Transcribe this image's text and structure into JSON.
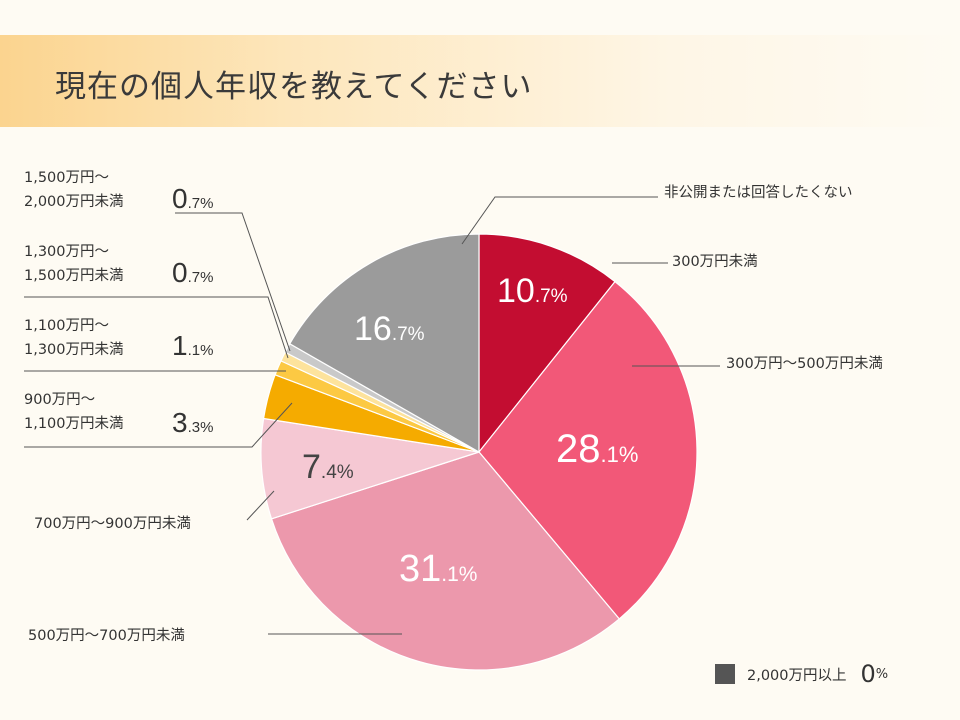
{
  "title": "現在の個人年収を教えてください",
  "colors": {
    "title_gradient_start": "#fbd48f",
    "background": "#fefbf3"
  },
  "chart_data": {
    "type": "pie",
    "title": "現在の個人年収を教えてください",
    "unit": "%",
    "slices": [
      {
        "label": "300万円未満",
        "value": 10.7,
        "int": "10",
        "dec": ".7%",
        "color": "#c30d31",
        "label_color": "#ffffff"
      },
      {
        "label": "300万円〜500万円未満",
        "value": 28.1,
        "int": "28",
        "dec": ".1%",
        "color": "#f25878",
        "label_color": "#ffffff"
      },
      {
        "label": "500万円〜700万円未満",
        "value": 31.1,
        "int": "31",
        "dec": ".1%",
        "color": "#ec98ac",
        "label_color": "#ffffff"
      },
      {
        "label": "700万円〜900万円未満",
        "value": 7.4,
        "int": "7",
        "dec": ".4%",
        "color": "#f5c8d3",
        "label_color": "#444444"
      },
      {
        "label_lines": [
          "900万円〜",
          "1,100万円未満"
        ],
        "value": 3.3,
        "int": "3",
        "dec": ".3%",
        "color": "#f5ab00"
      },
      {
        "label_lines": [
          "1,100万円〜",
          "1,300万円未満"
        ],
        "value": 1.1,
        "int": "1",
        "dec": ".1%",
        "color": "#fcc943"
      },
      {
        "label_lines": [
          "1,300万円〜",
          "1,500万円未満"
        ],
        "value": 0.7,
        "int": "0",
        "dec": ".7%",
        "color": "#fde39c"
      },
      {
        "label_lines": [
          "1,500万円〜",
          "2,000万円未満"
        ],
        "value": 0.7,
        "int": "0",
        "dec": ".7%",
        "color": "#c9c9c9"
      },
      {
        "label": "非公開または回答したくない",
        "value": 16.7,
        "int": "16",
        "dec": ".7%",
        "color": "#9b9b9b",
        "label_color": "#ffffff"
      }
    ],
    "legend": [
      {
        "label": "2,000万円以上",
        "value": 0,
        "num": "0",
        "unit": "%",
        "color": "#555555"
      }
    ]
  }
}
